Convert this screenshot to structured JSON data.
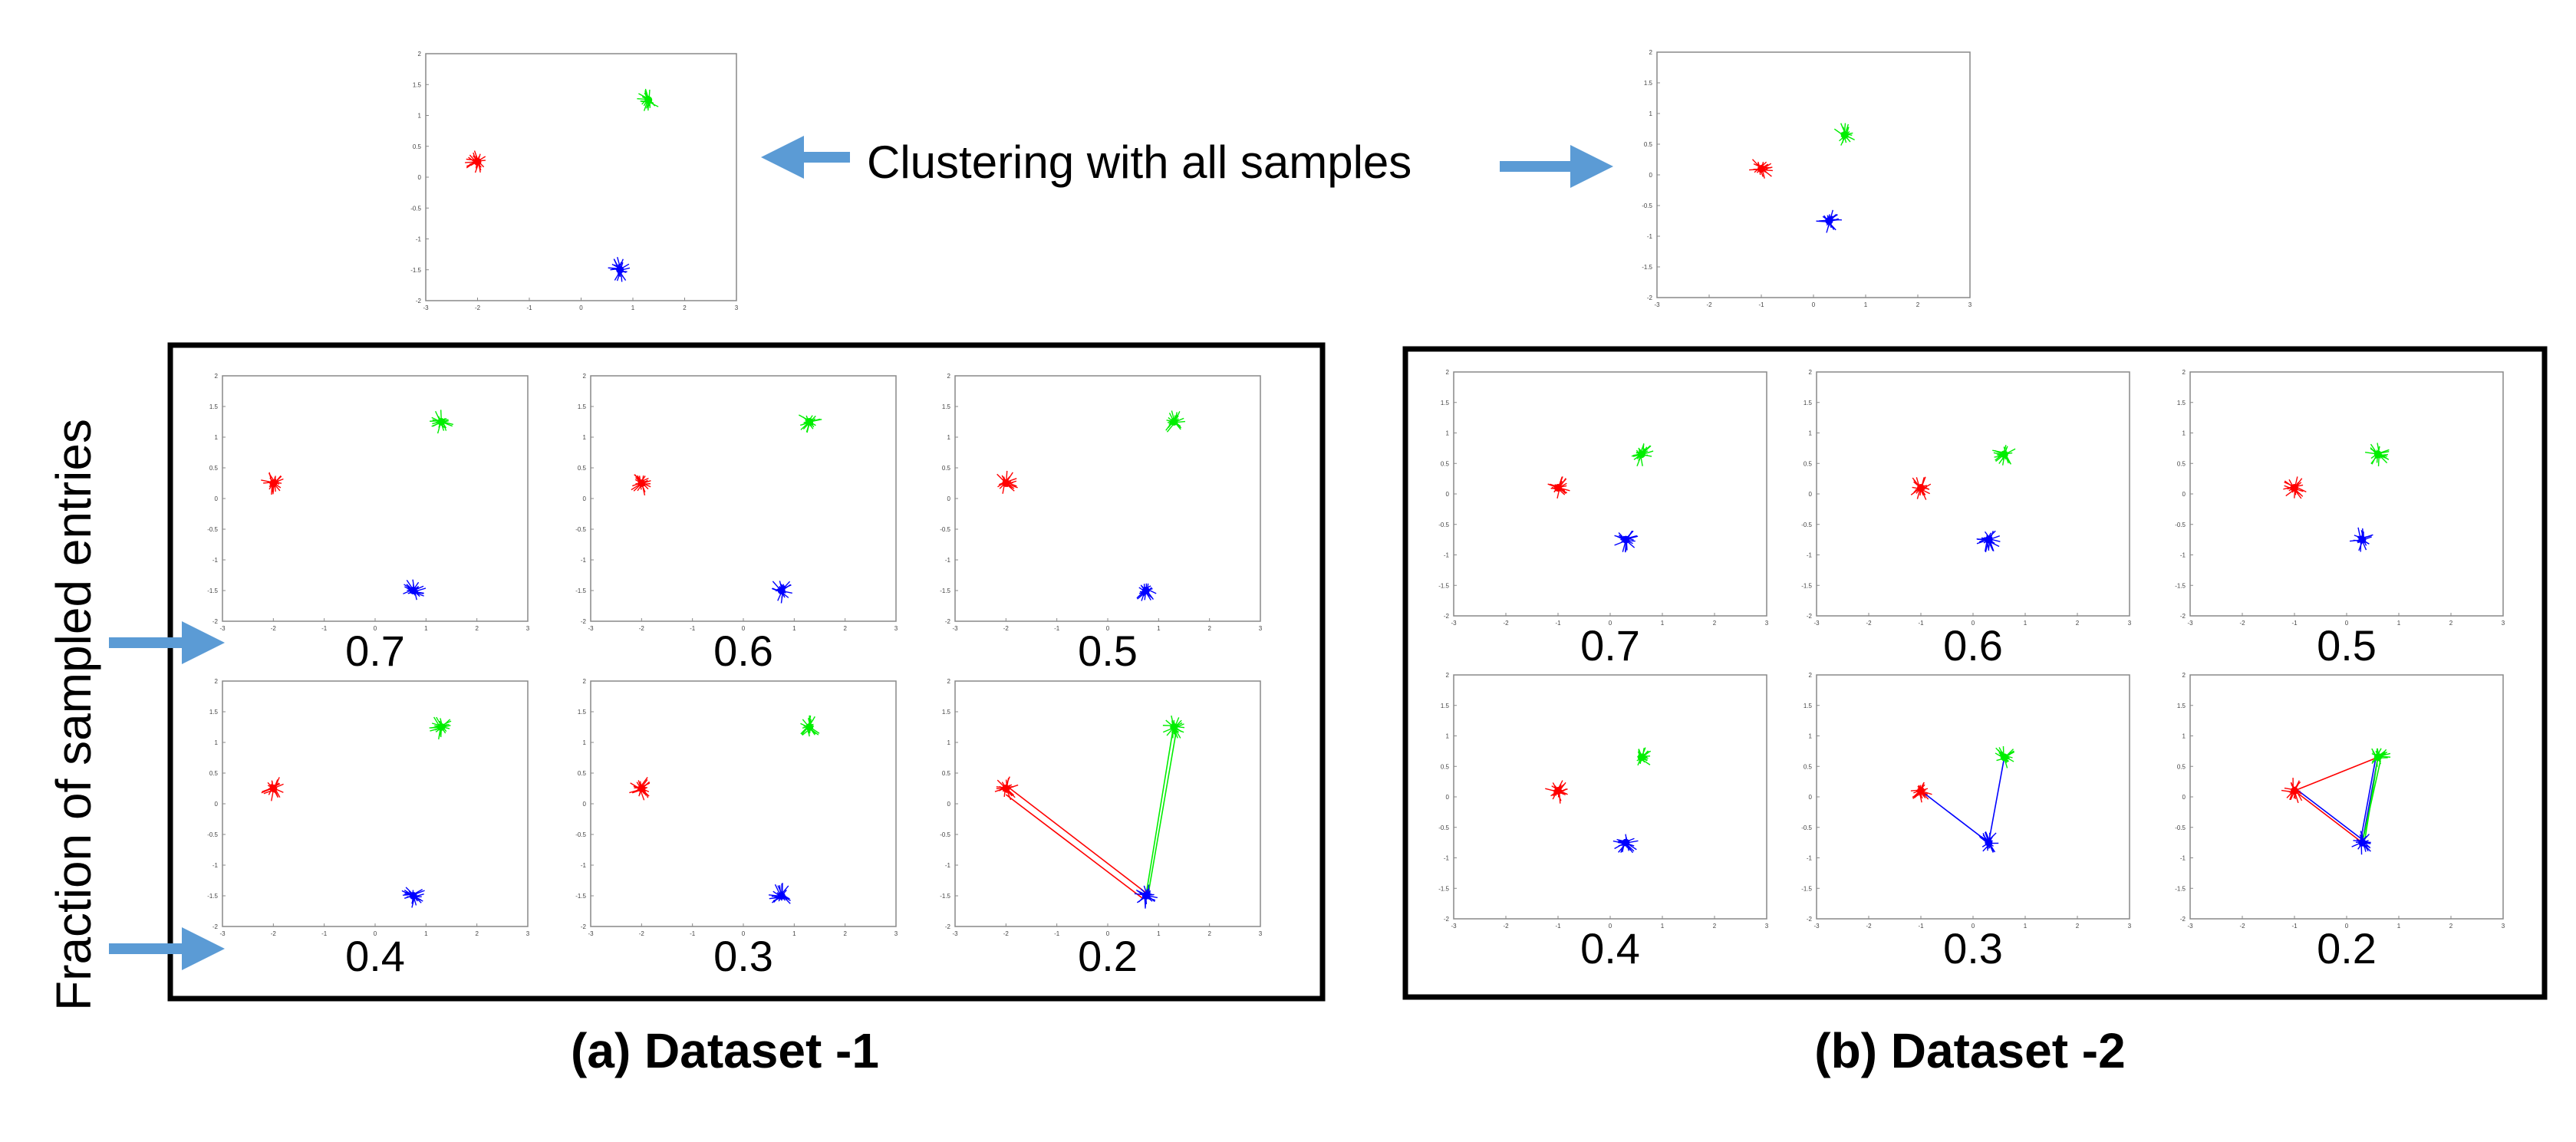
{
  "colors": {
    "red": "#ff0000",
    "green": "#00ee00",
    "blue": "#0000ff",
    "arrow": "#5b9bd5",
    "frame": "#000000",
    "axis": "#888888"
  },
  "labels": {
    "top_caption": "Clustering with all samples",
    "y_caption": "Fraction of sampled entries",
    "dataset1_caption": "(a) Dataset -1",
    "dataset2_caption": "(b) Dataset -2"
  },
  "chart_data": [
    {
      "id": "ds1-full",
      "type": "scatter",
      "group": "Dataset -1",
      "panel_label": "",
      "xlim": [
        -3,
        3
      ],
      "ylim": [
        -2,
        2
      ],
      "xticks": [
        "-3",
        "-2",
        "-1",
        "0",
        "1",
        "2",
        "3"
      ],
      "yticks": [
        "2",
        "1.5",
        "1",
        "0.5",
        "0",
        "-0.5",
        "-1",
        "-1.5",
        "-2"
      ],
      "centers": {
        "red": [
          -2.0,
          0.25
        ],
        "green": [
          1.3,
          1.25
        ],
        "blue": [
          0.75,
          -1.5
        ]
      },
      "lines": []
    },
    {
      "id": "ds2-full",
      "type": "scatter",
      "group": "Dataset -2",
      "panel_label": "",
      "xlim": [
        -3,
        3
      ],
      "ylim": [
        -2,
        2
      ],
      "xticks": [
        "-3",
        "-2",
        "-1",
        "0",
        "1",
        "2",
        "3"
      ],
      "yticks": [
        "2",
        "1.5",
        "1",
        "0.5",
        "0",
        "-0.5",
        "-1",
        "-1.5",
        "-2"
      ],
      "centers": {
        "red": [
          -1.0,
          0.1
        ],
        "green": [
          0.6,
          0.65
        ],
        "blue": [
          0.3,
          -0.75
        ]
      },
      "lines": []
    },
    {
      "id": "ds1-0.7",
      "type": "scatter",
      "group": "Dataset -1",
      "panel_label": "0.7",
      "xlim": [
        -3,
        3
      ],
      "ylim": [
        -2,
        2
      ],
      "xticks": [
        "-3",
        "-2",
        "-1",
        "0",
        "1",
        "2",
        "3"
      ],
      "yticks": [
        "2",
        "1.5",
        "1",
        "0.5",
        "0",
        "-0.5",
        "-1",
        "-1.5",
        "-2"
      ],
      "centers": {
        "red": [
          -2.0,
          0.25
        ],
        "green": [
          1.3,
          1.25
        ],
        "blue": [
          0.75,
          -1.5
        ]
      },
      "lines": []
    },
    {
      "id": "ds1-0.6",
      "type": "scatter",
      "group": "Dataset -1",
      "panel_label": "0.6",
      "xlim": [
        -3,
        3
      ],
      "ylim": [
        -2,
        2
      ],
      "xticks": [
        "-3",
        "-2",
        "-1",
        "0",
        "1",
        "2",
        "3"
      ],
      "yticks": [
        "2",
        "1.5",
        "1",
        "0.5",
        "0",
        "-0.5",
        "-1",
        "-1.5",
        "-2"
      ],
      "centers": {
        "red": [
          -2.0,
          0.25
        ],
        "green": [
          1.3,
          1.25
        ],
        "blue": [
          0.75,
          -1.5
        ]
      },
      "lines": []
    },
    {
      "id": "ds1-0.5",
      "type": "scatter",
      "group": "Dataset -1",
      "panel_label": "0.5",
      "xlim": [
        -3,
        3
      ],
      "ylim": [
        -2,
        2
      ],
      "xticks": [
        "-3",
        "-2",
        "-1",
        "0",
        "1",
        "2",
        "3"
      ],
      "yticks": [
        "2",
        "1.5",
        "1",
        "0.5",
        "0",
        "-0.5",
        "-1",
        "-1.5",
        "-2"
      ],
      "centers": {
        "red": [
          -2.0,
          0.25
        ],
        "green": [
          1.3,
          1.25
        ],
        "blue": [
          0.75,
          -1.5
        ]
      },
      "lines": []
    },
    {
      "id": "ds1-0.4",
      "type": "scatter",
      "group": "Dataset -1",
      "panel_label": "0.4",
      "xlim": [
        -3,
        3
      ],
      "ylim": [
        -2,
        2
      ],
      "xticks": [
        "-3",
        "-2",
        "-1",
        "0",
        "1",
        "2",
        "3"
      ],
      "yticks": [
        "2",
        "1.5",
        "1",
        "0.5",
        "0",
        "-0.5",
        "-1",
        "-1.5",
        "-2"
      ],
      "centers": {
        "red": [
          -2.0,
          0.25
        ],
        "green": [
          1.3,
          1.25
        ],
        "blue": [
          0.75,
          -1.5
        ]
      },
      "lines": []
    },
    {
      "id": "ds1-0.3",
      "type": "scatter",
      "group": "Dataset -1",
      "panel_label": "0.3",
      "xlim": [
        -3,
        3
      ],
      "ylim": [
        -2,
        2
      ],
      "xticks": [
        "-3",
        "-2",
        "-1",
        "0",
        "1",
        "2",
        "3"
      ],
      "yticks": [
        "2",
        "1.5",
        "1",
        "0.5",
        "0",
        "-0.5",
        "-1",
        "-1.5",
        "-2"
      ],
      "centers": {
        "red": [
          -2.0,
          0.25
        ],
        "green": [
          1.3,
          1.25
        ],
        "blue": [
          0.75,
          -1.5
        ]
      },
      "lines": []
    },
    {
      "id": "ds1-0.2",
      "type": "scatter",
      "group": "Dataset -1",
      "panel_label": "0.2",
      "xlim": [
        -3,
        3
      ],
      "ylim": [
        -2,
        2
      ],
      "xticks": [
        "-3",
        "-2",
        "-1",
        "0",
        "1",
        "2",
        "3"
      ],
      "yticks": [
        "2",
        "1.5",
        "1",
        "0.5",
        "0",
        "-0.5",
        "-1",
        "-1.5",
        "-2"
      ],
      "centers": {
        "red": [
          -2.0,
          0.25
        ],
        "green": [
          1.3,
          1.25
        ],
        "blue": [
          0.75,
          -1.5
        ]
      },
      "lines": [
        {
          "color": "red",
          "from": [
            -2.0,
            0.3
          ],
          "to": [
            0.75,
            -1.45
          ]
        },
        {
          "color": "red",
          "from": [
            -2.0,
            0.15
          ],
          "to": [
            0.7,
            -1.55
          ]
        },
        {
          "color": "green",
          "from": [
            1.3,
            1.3
          ],
          "to": [
            0.75,
            -1.5
          ]
        },
        {
          "color": "green",
          "from": [
            1.35,
            1.2
          ],
          "to": [
            0.8,
            -1.45
          ]
        }
      ]
    },
    {
      "id": "ds2-0.7",
      "type": "scatter",
      "group": "Dataset -2",
      "panel_label": "0.7",
      "xlim": [
        -3,
        3
      ],
      "ylim": [
        -2,
        2
      ],
      "xticks": [
        "-3",
        "-2",
        "-1",
        "0",
        "1",
        "2",
        "3"
      ],
      "yticks": [
        "2",
        "1.5",
        "1",
        "0.5",
        "0",
        "-0.5",
        "-1",
        "-1.5",
        "-2"
      ],
      "centers": {
        "red": [
          -1.0,
          0.1
        ],
        "green": [
          0.6,
          0.65
        ],
        "blue": [
          0.3,
          -0.75
        ]
      },
      "lines": []
    },
    {
      "id": "ds2-0.6",
      "type": "scatter",
      "group": "Dataset -2",
      "panel_label": "0.6",
      "xlim": [
        -3,
        3
      ],
      "ylim": [
        -2,
        2
      ],
      "xticks": [
        "-3",
        "-2",
        "-1",
        "0",
        "1",
        "2",
        "3"
      ],
      "yticks": [
        "2",
        "1.5",
        "1",
        "0.5",
        "0",
        "-0.5",
        "-1",
        "-1.5",
        "-2"
      ],
      "centers": {
        "red": [
          -1.0,
          0.1
        ],
        "green": [
          0.6,
          0.65
        ],
        "blue": [
          0.3,
          -0.75
        ]
      },
      "lines": []
    },
    {
      "id": "ds2-0.5",
      "type": "scatter",
      "group": "Dataset -2",
      "panel_label": "0.5",
      "xlim": [
        -3,
        3
      ],
      "ylim": [
        -2,
        2
      ],
      "xticks": [
        "-3",
        "-2",
        "-1",
        "0",
        "1",
        "2",
        "3"
      ],
      "yticks": [
        "2",
        "1.5",
        "1",
        "0.5",
        "0",
        "-0.5",
        "-1",
        "-1.5",
        "-2"
      ],
      "centers": {
        "red": [
          -1.0,
          0.1
        ],
        "green": [
          0.6,
          0.65
        ],
        "blue": [
          0.3,
          -0.75
        ]
      },
      "lines": []
    },
    {
      "id": "ds2-0.4",
      "type": "scatter",
      "group": "Dataset -2",
      "panel_label": "0.4",
      "xlim": [
        -3,
        3
      ],
      "ylim": [
        -2,
        2
      ],
      "xticks": [
        "-3",
        "-2",
        "-1",
        "0",
        "1",
        "2",
        "3"
      ],
      "yticks": [
        "2",
        "1.5",
        "1",
        "0.5",
        "0",
        "-0.5",
        "-1",
        "-1.5",
        "-2"
      ],
      "centers": {
        "red": [
          -1.0,
          0.1
        ],
        "green": [
          0.6,
          0.65
        ],
        "blue": [
          0.3,
          -0.75
        ]
      },
      "lines": []
    },
    {
      "id": "ds2-0.3",
      "type": "scatter",
      "group": "Dataset -2",
      "panel_label": "0.3",
      "xlim": [
        -3,
        3
      ],
      "ylim": [
        -2,
        2
      ],
      "xticks": [
        "-3",
        "-2",
        "-1",
        "0",
        "1",
        "2",
        "3"
      ],
      "yticks": [
        "2",
        "1.5",
        "1",
        "0.5",
        "0",
        "-0.5",
        "-1",
        "-1.5",
        "-2"
      ],
      "centers": {
        "red": [
          -1.0,
          0.1
        ],
        "green": [
          0.6,
          0.65
        ],
        "blue": [
          0.3,
          -0.75
        ]
      },
      "lines": [
        {
          "color": "blue",
          "from": [
            -1.0,
            0.1
          ],
          "to": [
            0.3,
            -0.75
          ]
        },
        {
          "color": "blue",
          "from": [
            0.6,
            0.65
          ],
          "to": [
            0.3,
            -0.75
          ]
        }
      ]
    },
    {
      "id": "ds2-0.2",
      "type": "scatter",
      "group": "Dataset -2",
      "panel_label": "0.2",
      "xlim": [
        -3,
        3
      ],
      "ylim": [
        -2,
        2
      ],
      "xticks": [
        "-3",
        "-2",
        "-1",
        "0",
        "1",
        "2",
        "3"
      ],
      "yticks": [
        "2",
        "1.5",
        "1",
        "0.5",
        "0",
        "-0.5",
        "-1",
        "-1.5",
        "-2"
      ],
      "centers": {
        "red": [
          -1.0,
          0.1
        ],
        "green": [
          0.6,
          0.65
        ],
        "blue": [
          0.3,
          -0.75
        ]
      },
      "lines": [
        {
          "color": "red",
          "from": [
            -1.0,
            0.1
          ],
          "to": [
            0.6,
            0.65
          ]
        },
        {
          "color": "red",
          "from": [
            -1.0,
            0.1
          ],
          "to": [
            0.3,
            -0.75
          ]
        },
        {
          "color": "blue",
          "from": [
            -1.0,
            0.15
          ],
          "to": [
            0.3,
            -0.7
          ]
        },
        {
          "color": "blue",
          "from": [
            0.6,
            0.65
          ],
          "to": [
            0.3,
            -0.75
          ]
        },
        {
          "color": "blue",
          "from": [
            0.55,
            0.6
          ],
          "to": [
            0.25,
            -0.8
          ]
        },
        {
          "color": "green",
          "from": [
            0.6,
            0.65
          ],
          "to": [
            0.35,
            -0.7
          ]
        },
        {
          "color": "green",
          "from": [
            0.65,
            0.6
          ],
          "to": [
            0.3,
            -0.75
          ]
        }
      ]
    }
  ]
}
